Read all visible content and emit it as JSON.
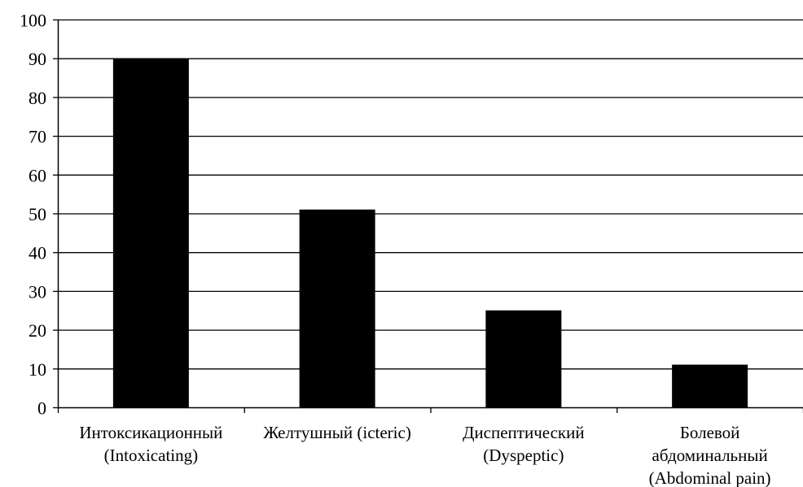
{
  "chart_data": {
    "type": "bar",
    "categories": [
      [
        "Интоксикационный",
        "(Intoxicating)"
      ],
      [
        "Желтушный (icteric)"
      ],
      [
        "Диспептический",
        "(Dyspeptic)"
      ],
      [
        "Болевой",
        "абдоминальный",
        "(Abdominal pain)"
      ]
    ],
    "values": [
      90,
      51,
      25,
      11
    ],
    "ylim": [
      0,
      100
    ],
    "yticks": [
      0,
      10,
      20,
      30,
      40,
      50,
      60,
      70,
      80,
      90,
      100
    ],
    "ytick_labels": [
      "0",
      "10",
      "20",
      "30",
      "40",
      "50",
      "60",
      "70",
      "80",
      "90",
      "100"
    ],
    "grid": true,
    "bar_color": "#000000",
    "grid_color": "#000000",
    "title": "",
    "xlabel": "",
    "ylabel": ""
  }
}
